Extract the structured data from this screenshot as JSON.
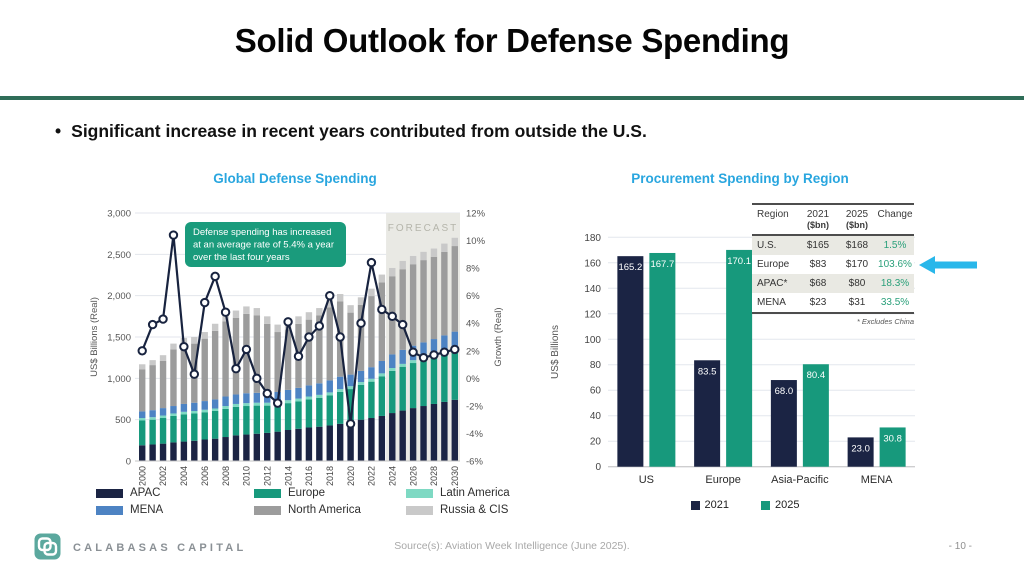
{
  "slide": {
    "title": "Solid Outlook for Defense Spending",
    "bullet_marker": "•",
    "bullet": "Significant increase in recent years contributed from outside the U.S."
  },
  "colors": {
    "divider_green": "#2f6d58",
    "chart_title_blue": "#29a6df",
    "navy": "#1b2444",
    "green": "#17997c",
    "light_teal": "#7ed9c3",
    "blue": "#4d83c3",
    "gray": "#9c9c9c",
    "light_gray": "#c9c9c9",
    "forecast_shade": "#e9e9e4",
    "arrow_cyan": "#29b7ea",
    "table_change_green": "#2aa07a"
  },
  "chart_data": [
    {
      "type": "combo-stacked-bar-line",
      "title": "Global Defense Spending",
      "ylabel_left": "US$ Billions (Real)",
      "ylabel_right": "Growth (Real)",
      "ylim_left": [
        0,
        3000
      ],
      "yticks_left": [
        "0",
        "500",
        "1,000",
        "1,500",
        "2,000",
        "2,500",
        "3,000"
      ],
      "ylim_right": [
        -6,
        12
      ],
      "yticks_right": [
        "-6%",
        "-4%",
        "-2%",
        "0%",
        "2%",
        "4%",
        "6%",
        "8%",
        "10%",
        "12%"
      ],
      "years": [
        2000,
        2001,
        2002,
        2003,
        2004,
        2005,
        2006,
        2007,
        2008,
        2009,
        2010,
        2011,
        2012,
        2013,
        2014,
        2015,
        2016,
        2017,
        2018,
        2019,
        2020,
        2021,
        2022,
        2023,
        2024,
        2025,
        2026,
        2027,
        2028,
        2029,
        2030
      ],
      "xtick_step": 2,
      "stack_series": [
        {
          "name": "APAC",
          "color": "#1b2444",
          "values": [
            190,
            200,
            210,
            225,
            235,
            245,
            260,
            270,
            290,
            310,
            320,
            330,
            340,
            355,
            375,
            390,
            405,
            415,
            430,
            450,
            470,
            500,
            520,
            545,
            580,
            610,
            640,
            665,
            690,
            715,
            740
          ]
        },
        {
          "name": "Europe",
          "color": "#17997c",
          "values": [
            300,
            300,
            310,
            320,
            330,
            330,
            330,
            335,
            340,
            345,
            345,
            340,
            330,
            325,
            325,
            330,
            340,
            350,
            365,
            385,
            400,
            420,
            440,
            480,
            510,
            530,
            545,
            555,
            565,
            580,
            595
          ]
        },
        {
          "name": "Latin America",
          "color": "#7ed9c3",
          "values": [
            30,
            30,
            30,
            30,
            30,
            30,
            30,
            30,
            35,
            35,
            35,
            35,
            35,
            35,
            35,
            35,
            35,
            35,
            35,
            35,
            35,
            35,
            35,
            35,
            35,
            35,
            35,
            35,
            35,
            35,
            35
          ]
        },
        {
          "name": "MENA",
          "color": "#4d83c3",
          "values": [
            80,
            85,
            90,
            90,
            95,
            100,
            105,
            110,
            115,
            115,
            120,
            120,
            120,
            120,
            125,
            130,
            135,
            140,
            145,
            150,
            140,
            135,
            140,
            150,
            165,
            170,
            175,
            180,
            185,
            190,
            195
          ]
        },
        {
          "name": "North America",
          "color": "#9c9c9c",
          "values": [
            510,
            545,
            570,
            685,
            720,
            715,
            755,
            830,
            910,
            925,
            960,
            935,
            835,
            725,
            730,
            775,
            795,
            820,
            885,
            910,
            750,
            800,
            860,
            950,
            945,
            975,
            985,
            995,
            995,
            1010,
            1035
          ]
        },
        {
          "name": "Russia & CIS",
          "color": "#c9c9c9",
          "values": [
            60,
            60,
            70,
            70,
            80,
            80,
            80,
            85,
            90,
            90,
            90,
            90,
            90,
            90,
            90,
            90,
            90,
            90,
            90,
            90,
            90,
            90,
            90,
            95,
            100,
            100,
            100,
            100,
            100,
            100,
            100
          ]
        }
      ],
      "line_series": {
        "name": "Growth (Real) %",
        "color": "#18233f",
        "values": [
          2.0,
          3.9,
          4.3,
          10.4,
          2.3,
          0.3,
          5.5,
          7.4,
          4.8,
          0.7,
          2.1,
          0.0,
          -1.1,
          -1.8,
          4.1,
          1.6,
          3.0,
          3.8,
          6.0,
          3.0,
          -3.3,
          4.0,
          8.4,
          5.0,
          4.5,
          3.9,
          1.9,
          1.5,
          1.7,
          1.9,
          2.1
        ]
      },
      "annotation_lines": [
        "Defense spending has increased",
        "at an average rate of 5.4% a year",
        "over the last four years"
      ],
      "annotation_bg": "#1a9b7c",
      "forecast": {
        "label": "FORECAST",
        "start_year": 2024
      }
    },
    {
      "type": "bar",
      "title": "Procurement Spending by Region",
      "ylabel": "US$ Billions",
      "ylim": [
        0,
        180
      ],
      "ytick_step": 20,
      "categories": [
        "US",
        "Europe",
        "Asia-Pacific",
        "MENA"
      ],
      "series": [
        {
          "name": "2021",
          "color": "#1b2444",
          "values": [
            165.2,
            83.5,
            68.0,
            23.0
          ]
        },
        {
          "name": "2025",
          "color": "#17997c",
          "values": [
            167.7,
            170.1,
            80.4,
            30.8
          ]
        }
      ],
      "table": {
        "headers": [
          [
            "Region",
            ""
          ],
          [
            "2021",
            "($bn)"
          ],
          [
            "2025",
            "($bn)"
          ],
          [
            "Change",
            ""
          ]
        ],
        "rows": [
          [
            "U.S.",
            "$165",
            "$168",
            "1.5%"
          ],
          [
            "Europe",
            "$83",
            "$170",
            "103.6%"
          ],
          [
            "APAC*",
            "$68",
            "$80",
            "18.3%"
          ],
          [
            "MENA",
            "$23",
            "$31",
            "33.5%"
          ]
        ],
        "shaded_rows": [
          0,
          2
        ],
        "footnote": "* Excludes China"
      }
    }
  ],
  "footer": {
    "brand": "CALABASAS CAPITAL",
    "logo_color": "#5ba89e",
    "source": "Source(s): Aviation Week Intelligence (June 2025).",
    "page_number": "- 10 -"
  }
}
